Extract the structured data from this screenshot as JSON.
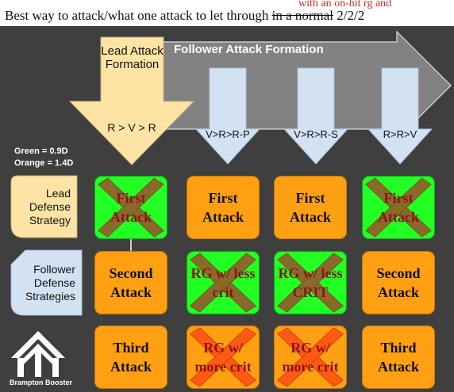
{
  "title": {
    "prefix": "Best way to attack/what one attack to let through ",
    "strike": "in a normal",
    "suffix": " 2/2/2",
    "note": "with an on-hit rg and"
  },
  "lead_formation": {
    "label": "Lead Attack Formation",
    "sequence": "R > V > R"
  },
  "follower_formation": {
    "label": "Follower Attack Formation"
  },
  "columns": [
    {
      "sequence": "V>R>R-P"
    },
    {
      "sequence": "V>R>R-S"
    },
    {
      "sequence": "R>R>V"
    }
  ],
  "legend": {
    "green": "Green = 0.9D",
    "orange": "Orange = 1.4D"
  },
  "rows": [
    {
      "label": "Lead Defense Strategy"
    },
    {
      "label": "Follower Defense Strategies"
    }
  ],
  "grid": [
    [
      {
        "text": "First Attack",
        "fill": "green",
        "crossed": true
      },
      {
        "text": "First Attack",
        "fill": "orange",
        "crossed": false
      },
      {
        "text": "First Attack",
        "fill": "orange",
        "crossed": false
      },
      {
        "text": "First Attack",
        "fill": "green",
        "crossed": true
      }
    ],
    [
      {
        "text": "Second Attack",
        "fill": "orange",
        "crossed": false
      },
      {
        "text": "RG w/ less crit",
        "fill": "green",
        "crossed": true
      },
      {
        "text": "RG w/ less CRIT",
        "fill": "green",
        "crossed": true
      },
      {
        "text": "Second Attack",
        "fill": "orange",
        "crossed": false
      }
    ],
    [
      {
        "text": "Third Attack",
        "fill": "orange",
        "crossed": false
      },
      {
        "text": "RG w/ more crit",
        "fill": "orange",
        "crossed": true
      },
      {
        "text": "RG w/ more crit",
        "fill": "orange",
        "crossed": true
      },
      {
        "text": "Third Attack",
        "fill": "orange",
        "crossed": false
      }
    ]
  ],
  "brand": "Brampton Booster",
  "colors": {
    "background": "#3f3f3f",
    "cell_orange": "#ff9f12",
    "cell_green": "#22ff22",
    "lead_arrow": "#fde4a4",
    "follower_arrow": "#d3e2f2",
    "big_arrow": "#8e8e8e",
    "cross_green": "#8a6a2a",
    "cross_orange": "#ff5a14"
  },
  "icons": [
    "brampton-booster-logo-icon",
    "connector-dot-icon"
  ]
}
